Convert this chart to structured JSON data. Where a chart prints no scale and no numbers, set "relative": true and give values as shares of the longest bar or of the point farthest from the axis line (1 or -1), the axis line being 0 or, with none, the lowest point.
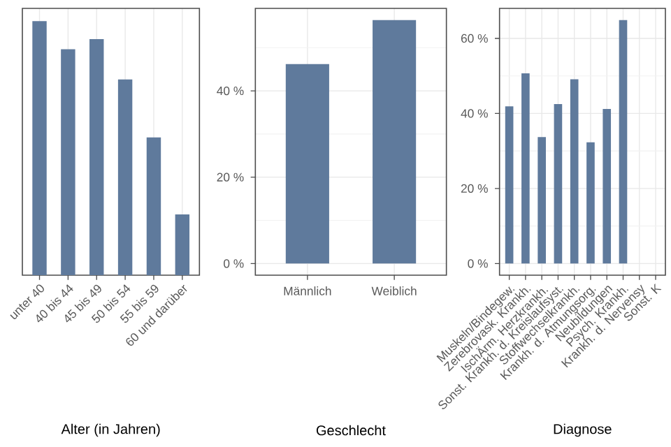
{
  "chart_data": [
    {
      "type": "bar",
      "relative": true,
      "xlabel": "Alter (in Jahren)",
      "categories": [
        "unter 40",
        "40 bis 44",
        "45 bis 49",
        "50 bis 54",
        "55 bis 59",
        "60 und darüber"
      ],
      "values": [
        1,
        0.889,
        0.929,
        0.77,
        0.542,
        0.239
      ],
      "color": "#5f7a9c",
      "grid": true,
      "tick_labels": "x"
    },
    {
      "type": "bar",
      "xlabel": "Geschlecht",
      "categories": [
        "Männlich",
        "Weiblich"
      ],
      "values": [
        46.2,
        56.4
      ],
      "color": "#5f7a9c",
      "grid": true,
      "ylim": [
        -2.7,
        59.1
      ],
      "yticks": [
        {
          "value": 0,
          "label": "0 %"
        },
        {
          "value": 20,
          "label": "20 %"
        },
        {
          "value": 40,
          "label": "40 %"
        }
      ]
    },
    {
      "type": "bar",
      "xlabel": "Diagnose",
      "categories": [
        "Muskeln/Bindegew.",
        "Zerebrovask. Krankh.",
        "IschÄrm. Herzkrankh.",
        "Sonst. Krankh. d. Kreislaufsyst.",
        "Stoffwechselkrankh.",
        "Krankh. d. Atmungsorg.",
        "Neubildungen",
        "Psych. Krankh.",
        "Krankh. d. Nervensy",
        "Sonst. K"
      ],
      "values": [
        41.9,
        50.7,
        33.7,
        42.5,
        49.1,
        32.3,
        41.2,
        64.9,
        null,
        null
      ],
      "color": "#5f7a9c",
      "grid": true,
      "ylim": [
        -3.1,
        68.0
      ],
      "yticks": [
        {
          "value": 0,
          "label": "0 %"
        },
        {
          "value": 20,
          "label": "20 %"
        },
        {
          "value": 40,
          "label": "40 %"
        },
        {
          "value": 60,
          "label": "60 %"
        }
      ]
    }
  ]
}
